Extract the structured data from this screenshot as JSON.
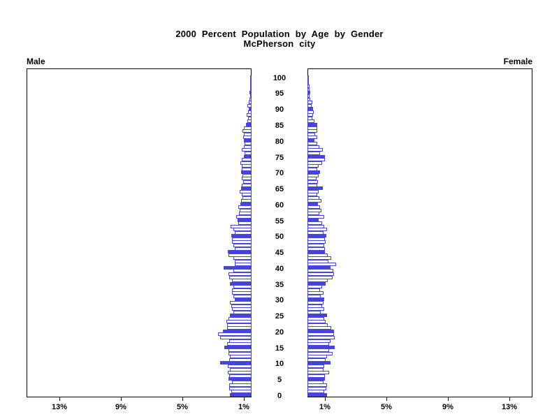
{
  "title": {
    "line1": "2000 Percent Population by Age by Gender",
    "line2": "McPherson city"
  },
  "panels": {
    "male_label": "Male",
    "female_label": "Female"
  },
  "axis": {
    "age_tick_labels": [
      "0",
      "5",
      "10",
      "15",
      "20",
      "25",
      "30",
      "35",
      "40",
      "45",
      "50",
      "55",
      "60",
      "65",
      "70",
      "75",
      "80",
      "85",
      "90",
      "95",
      "100"
    ],
    "left_pct_tick_labels": [
      "13%",
      "9%",
      "5%",
      "1%"
    ],
    "right_pct_tick_labels": [
      "1%",
      "5%",
      "9%",
      "13%"
    ]
  },
  "colors": {
    "bar_blue": "#4545DD",
    "axis_black": "#000000",
    "background": "#FFFFFF"
  },
  "chart_data": {
    "type": "bar",
    "subtype": "population-pyramid",
    "title": "2000 Percent Population by Age by Gender",
    "subtitle": "McPherson city",
    "unit": "percent of total population",
    "age_min": 0,
    "age_max": 100,
    "age_axis_ticks": [
      0,
      5,
      10,
      15,
      20,
      25,
      30,
      35,
      40,
      45,
      50,
      55,
      60,
      65,
      70,
      75,
      80,
      85,
      90,
      95,
      100
    ],
    "pct_axis_ticks": [
      1,
      5,
      9,
      13
    ],
    "pct_axis_max": 15,
    "style_note": "bars at ages divisible by 5 are solid filled; others white with blue outline",
    "series": [
      {
        "name": "Male",
        "side": "left",
        "values_by_age": [
          1.38,
          1.3,
          1.4,
          1.44,
          1.24,
          1.48,
          1.4,
          1.5,
          1.38,
          1.5,
          2.0,
          1.41,
          1.38,
          1.47,
          1.47,
          1.75,
          1.55,
          1.41,
          2.0,
          2.15,
          1.84,
          1.55,
          1.56,
          1.6,
          1.47,
          1.38,
          1.15,
          1.24,
          1.3,
          1.38,
          1.07,
          1.15,
          1.23,
          1.25,
          1.15,
          1.38,
          1.22,
          1.41,
          1.45,
          1.15,
          1.8,
          1.07,
          1.07,
          1.15,
          1.45,
          1.51,
          1.05,
          1.15,
          1.23,
          1.23,
          1.3,
          1.05,
          1.15,
          1.35,
          0.83,
          0.88,
          0.95,
          0.78,
          0.74,
          0.83,
          0.69,
          0.64,
          0.55,
          0.6,
          0.74,
          0.64,
          0.58,
          0.51,
          0.58,
          0.55,
          0.64,
          0.58,
          0.58,
          0.69,
          0.58,
          0.46,
          0.41,
          0.6,
          0.46,
          0.41,
          0.46,
          0.51,
          0.46,
          0.55,
          0.46,
          0.32,
          0.23,
          0.18,
          0.28,
          0.18,
          0.14,
          0.23,
          0.14,
          0.09,
          0.05,
          0.07,
          0.05,
          0.05,
          0.02,
          0.02,
          0.02
        ]
      },
      {
        "name": "Female",
        "side": "right",
        "values_by_age": [
          1.24,
          1.07,
          1.2,
          1.24,
          1.0,
          1.1,
          1.1,
          1.38,
          1.0,
          1.07,
          1.47,
          1.15,
          1.24,
          1.6,
          1.38,
          1.75,
          1.38,
          1.47,
          1.75,
          1.7,
          1.7,
          1.53,
          1.3,
          1.15,
          1.07,
          1.24,
          0.84,
          1.07,
          0.92,
          1.0,
          1.07,
          0.84,
          1.0,
          0.77,
          0.92,
          1.15,
          1.3,
          1.6,
          1.68,
          1.66,
          1.47,
          1.85,
          1.35,
          1.53,
          1.3,
          1.1,
          1.1,
          1.05,
          1.15,
          1.1,
          1.2,
          1.0,
          1.23,
          1.07,
          0.92,
          0.69,
          1.05,
          0.74,
          0.88,
          0.77,
          0.64,
          0.85,
          0.74,
          0.6,
          0.69,
          0.95,
          0.6,
          0.64,
          0.55,
          0.69,
          0.8,
          0.6,
          0.69,
          0.92,
          1.1,
          1.08,
          0.77,
          0.95,
          0.74,
          0.6,
          0.43,
          0.6,
          0.46,
          0.6,
          0.6,
          0.6,
          0.4,
          0.28,
          0.32,
          0.37,
          0.32,
          0.23,
          0.28,
          0.14,
          0.09,
          0.14,
          0.07,
          0.07,
          0.05,
          0.05,
          0.05
        ]
      }
    ]
  }
}
